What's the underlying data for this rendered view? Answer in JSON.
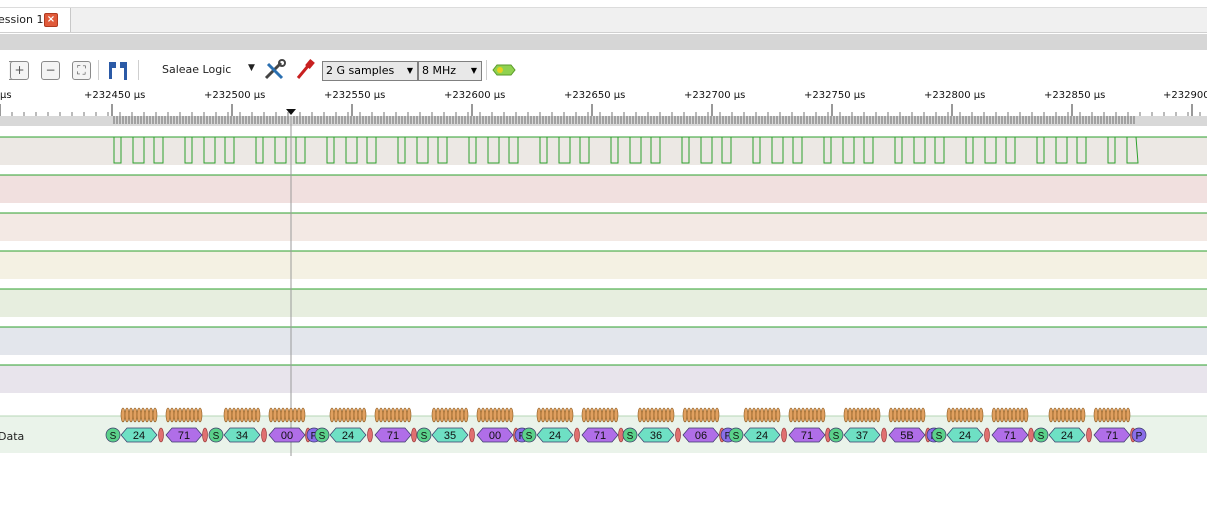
{
  "tab": {
    "title": "ession 1",
    "close": "×"
  },
  "toolbar": {
    "device": "Saleae Logic",
    "samples": "2 G samples",
    "rate": "8 MHz",
    "buttons": [
      "zoom-in-icon",
      "zoom-out-icon",
      "fit-icon",
      "marker-icon",
      "settings-icon",
      "probe-icon",
      "analyzer-icon"
    ]
  },
  "timeline": {
    "labels": [
      " μs",
      "+232450 μs",
      "+232500 μs",
      "+232550 μs",
      "+232600 μs",
      "+232650 μs",
      "+232700 μs",
      "+232750 μs",
      "+232800 μs",
      "+232850 μs",
      "+232900"
    ]
  },
  "decoder": {
    "channel_label": "Data",
    "packets": [
      [
        "S",
        "24",
        "71"
      ],
      [
        "S",
        "34",
        "00",
        "P"
      ],
      [
        "S",
        "24",
        "71"
      ],
      [
        "S",
        "35",
        "00",
        "P"
      ],
      [
        "S",
        "24",
        "71"
      ],
      [
        "S",
        "36",
        "06",
        "P"
      ],
      [
        "S",
        "24",
        "71"
      ],
      [
        "S",
        "37",
        "5B",
        "P"
      ],
      [
        "S",
        "24",
        "71"
      ],
      [
        "S",
        "24",
        "71",
        "P"
      ]
    ]
  },
  "colors": {
    "signal_high": "#2ca02c",
    "signal_low": "#c0392b",
    "start_marker": "#5bd18a",
    "address_frame": "#6ee0c4",
    "data_frame": "#b06ee8",
    "stop_marker": "#8a6ee8",
    "bit_marker": "#e0a060"
  }
}
